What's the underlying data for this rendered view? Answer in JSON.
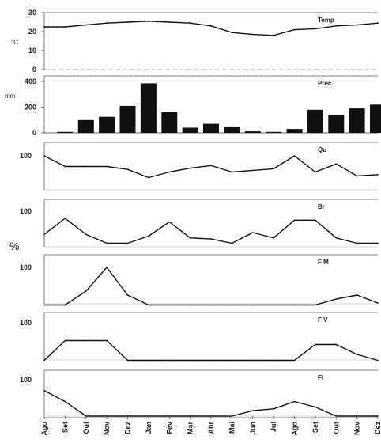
{
  "chart_data": [
    {
      "type": "line",
      "id": "temp",
      "title": "Temp",
      "ylabel": "°C",
      "ylim": [
        0,
        30
      ],
      "yticks": [
        "0",
        "10",
        "20",
        "30"
      ],
      "months": [
        "Ago",
        "Set",
        "Out",
        "Nov",
        "Dez",
        "Jan",
        "Fev",
        "Mar",
        "Abr",
        "Mai",
        "Jun",
        "Jul",
        "Ago",
        "Set",
        "Out",
        "Nov",
        "Dez"
      ],
      "values": [
        22.5,
        22.5,
        23.5,
        24.5,
        25,
        25.5,
        25,
        24.5,
        23,
        19.5,
        18.5,
        18,
        21,
        21.5,
        23,
        23.5,
        24.5
      ]
    },
    {
      "type": "bar",
      "id": "prec",
      "title": "Prec.",
      "ylabel": "mm",
      "ylim": [
        0,
        400
      ],
      "yticks": [
        "0",
        "200",
        "400"
      ],
      "months": [
        "Ago",
        "Set",
        "Out",
        "Nov",
        "Dez",
        "Jan",
        "Fev",
        "Mar",
        "Abr",
        "Mai",
        "Jun",
        "Jul",
        "Ago",
        "Set",
        "Out",
        "Nov",
        "Dez"
      ],
      "values": [
        0,
        5,
        100,
        125,
        210,
        385,
        160,
        40,
        70,
        50,
        12,
        5,
        30,
        180,
        140,
        190,
        220
      ]
    },
    {
      "type": "line",
      "id": "qu",
      "title": "Qu",
      "ylabel": "%",
      "ymax_tick": "100",
      "ylim": [
        0,
        130
      ],
      "values": [
        100,
        67,
        67,
        67,
        58,
        33,
        50,
        62,
        70,
        50,
        55,
        60,
        100,
        50,
        75,
        38,
        42
      ]
    },
    {
      "type": "line",
      "id": "br",
      "title": "Br",
      "ymax_tick": "100",
      "ylim": [
        0,
        130
      ],
      "values": [
        35,
        80,
        35,
        10,
        10,
        30,
        70,
        25,
        22,
        10,
        40,
        25,
        75,
        75,
        25,
        10,
        10
      ]
    },
    {
      "type": "line",
      "id": "fm",
      "title": "F M",
      "ymax_tick": "100",
      "ylim": [
        0,
        130
      ],
      "values": [
        5,
        5,
        40,
        100,
        30,
        5,
        5,
        5,
        5,
        5,
        5,
        5,
        5,
        5,
        20,
        30,
        10
      ]
    },
    {
      "type": "line",
      "id": "fv",
      "title": "F V",
      "ymax_tick": "100",
      "ylim": [
        0,
        130
      ],
      "values": [
        5,
        55,
        55,
        55,
        5,
        5,
        5,
        5,
        5,
        5,
        5,
        5,
        5,
        45,
        45,
        20,
        5
      ]
    },
    {
      "type": "line",
      "id": "fl",
      "title": "Fl",
      "ymax_tick": "100",
      "ylim": [
        0,
        130
      ],
      "values": [
        70,
        40,
        0,
        0,
        0,
        0,
        0,
        0,
        0,
        0,
        15,
        20,
        40,
        25,
        0,
        0,
        0
      ]
    }
  ],
  "percent_axis_label": "%",
  "x_tick_labels": [
    "Ago",
    "Set",
    "Out",
    "Nov",
    "Dez",
    "Jan",
    "Fev",
    "Mar",
    "Abr",
    "Mai",
    "Jun",
    "Jul",
    "Ago",
    "Set",
    "Out",
    "Nov",
    "Dez"
  ]
}
